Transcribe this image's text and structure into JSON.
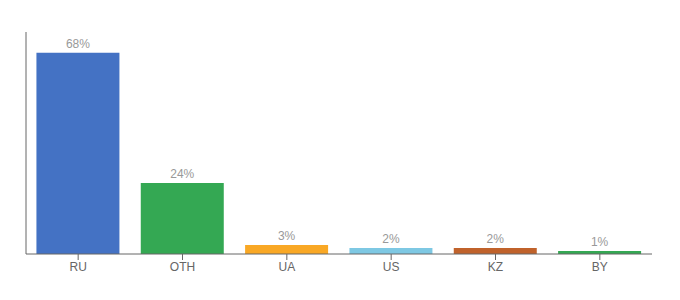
{
  "chart_data": {
    "type": "bar",
    "categories": [
      "RU",
      "OTH",
      "UA",
      "US",
      "KZ",
      "BY"
    ],
    "values": [
      68,
      24,
      3,
      2,
      2,
      1
    ],
    "value_labels": [
      "68%",
      "24%",
      "3%",
      "2%",
      "2%",
      "1%"
    ],
    "colors": [
      "#4472C4",
      "#34A853",
      "#F9A825",
      "#7EC8E3",
      "#C0622B",
      "#34A853"
    ],
    "ylim": [
      0,
      75
    ],
    "data_labels": true,
    "tick_labels": "x",
    "grid": false
  }
}
